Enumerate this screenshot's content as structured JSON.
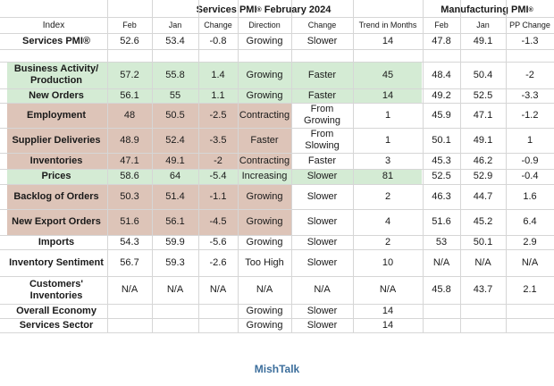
{
  "header": {
    "services_title": "Services PMI",
    "services_title_sup": "®",
    "services_period": "February 2024",
    "manufacturing_title": "Manufacturing PMI",
    "manufacturing_title_sup": "®"
  },
  "columns": [
    "Index",
    "Feb",
    "Jan",
    "Change",
    "Direction",
    "Change",
    "Trend in Months",
    "Feb",
    "Jan",
    "PP Change"
  ],
  "rows": [
    {
      "cells": [
        "Services PMI®",
        "52.6",
        "53.4",
        "-0.8",
        "Growing",
        "Slower",
        "14",
        "47.8",
        "49.1",
        "-1.3"
      ],
      "highlight": "none"
    },
    {
      "cells": [
        "",
        "",
        "",
        "",
        "",
        "",
        "",
        "",
        "",
        ""
      ],
      "highlight": "none"
    },
    {
      "cells": [
        "Business Activity/ Production",
        "57.2",
        "55.8",
        "1.4",
        "Growing",
        "Faster",
        "45",
        "48.4",
        "50.4",
        "-2"
      ],
      "highlight": "green"
    },
    {
      "cells": [
        "New Orders",
        "56.1",
        "55",
        "1.1",
        "Growing",
        "Faster",
        "14",
        "49.2",
        "52.5",
        "-3.3"
      ],
      "highlight": "green"
    },
    {
      "cells": [
        "Employment",
        "48",
        "50.5",
        "-2.5",
        "Contracting",
        "From Growing",
        "1",
        "45.9",
        "47.1",
        "-1.2"
      ],
      "highlight": "red"
    },
    {
      "cells": [
        "Supplier Deliveries",
        "48.9",
        "52.4",
        "-3.5",
        "Faster",
        "From Slowing",
        "1",
        "50.1",
        "49.1",
        "1"
      ],
      "highlight": "red"
    },
    {
      "cells": [
        "Inventories",
        "47.1",
        "49.1",
        "-2",
        "Contracting",
        "Faster",
        "3",
        "45.3",
        "46.2",
        "-0.9"
      ],
      "highlight": "red"
    },
    {
      "cells": [
        "Prices",
        "58.6",
        "64",
        "-5.4",
        "Increasing",
        "Slower",
        "81",
        "52.5",
        "52.9",
        "-0.4"
      ],
      "highlight": "green"
    },
    {
      "cells": [
        "Backlog of Orders",
        "50.3",
        "51.4",
        "-1.1",
        "Growing",
        "Slower",
        "2",
        "46.3",
        "44.7",
        "1.6"
      ],
      "highlight": "red"
    },
    {
      "cells": [
        "New Export Orders",
        "51.6",
        "56.1",
        "-4.5",
        "Growing",
        "Slower",
        "4",
        "51.6",
        "45.2",
        "6.4"
      ],
      "highlight": "red"
    },
    {
      "cells": [
        "Imports",
        "54.3",
        "59.9",
        "-5.6",
        "Growing",
        "Slower",
        "2",
        "53",
        "50.1",
        "2.9"
      ],
      "highlight": "none"
    },
    {
      "cells": [
        "Inventory Sentiment",
        "56.7",
        "59.3",
        "-2.6",
        "Too High",
        "Slower",
        "10",
        "N/A",
        "N/A",
        "N/A"
      ],
      "highlight": "none"
    },
    {
      "cells": [
        "Customers' Inventories",
        "N/A",
        "N/A",
        "N/A",
        "N/A",
        "N/A",
        "N/A",
        "45.8",
        "43.7",
        "2.1"
      ],
      "highlight": "none"
    },
    {
      "cells": [
        "Overall Economy",
        "",
        "",
        "",
        "Growing",
        "Slower",
        "14",
        "",
        "",
        ""
      ],
      "highlight": "none"
    },
    {
      "cells": [
        "Services Sector",
        "",
        "",
        "",
        "Growing",
        "Slower",
        "14",
        "",
        "",
        ""
      ],
      "highlight": "none"
    }
  ],
  "colors": {
    "green_highlight": "#d4ebd4",
    "red_highlight": "#ddc4b8",
    "grid_line": "#d6d6d6",
    "footer_text": "#3c6e9c"
  },
  "footer": "MishTalk"
}
